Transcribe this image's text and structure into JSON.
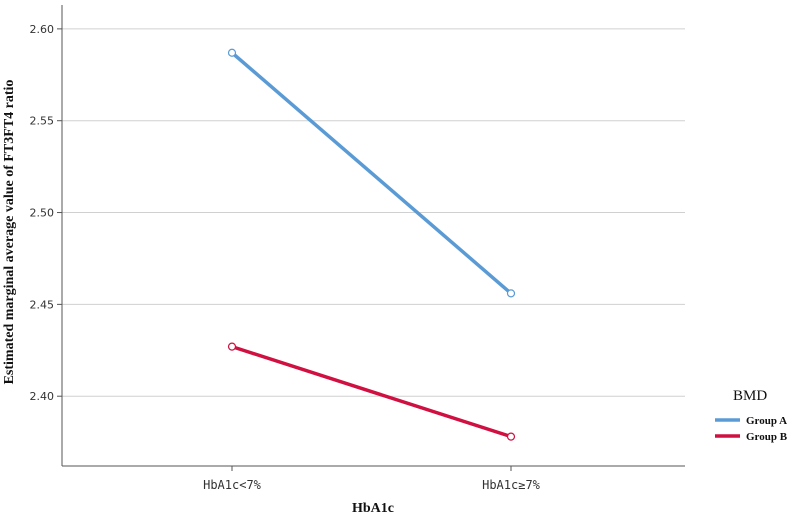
{
  "chart_data": {
    "type": "line",
    "categories": [
      "HbA1c<7%",
      "HbA1c≥7%"
    ],
    "series": [
      {
        "name": "Group A",
        "values": [
          2.587,
          2.456
        ],
        "color": "#5b9bd5"
      },
      {
        "name": "Group B",
        "values": [
          2.427,
          2.378
        ],
        "color": "#d01040"
      }
    ],
    "xlabel": "HbA1c",
    "ylabel": "Estimated marginal average value of FT3FT4 ratio",
    "ylim": [
      2.362,
      2.613
    ],
    "yticks": [
      "2.40",
      "2.45",
      "2.50",
      "2.55",
      "2.60"
    ],
    "grid": true,
    "legend": {
      "title": "BMD",
      "placement": "right"
    }
  }
}
